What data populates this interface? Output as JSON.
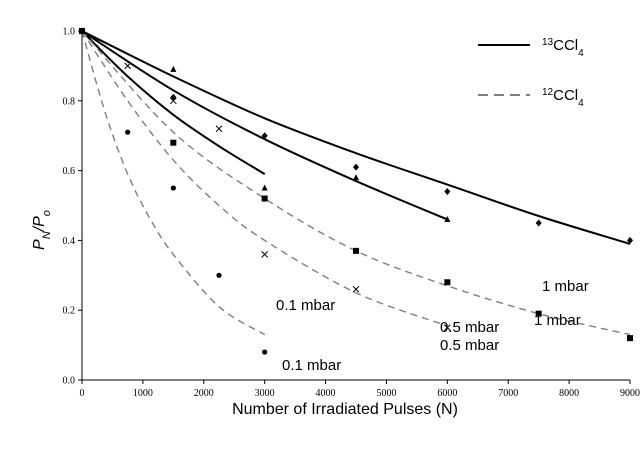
{
  "chart_data": {
    "type": "scatter",
    "xlabel": "Number of Irradiated Pulses (N)",
    "ylabel": {
      "main": "P",
      "sub1": "N",
      "sep": "/P",
      "sub2": "o"
    },
    "xlim": [
      0,
      9000
    ],
    "ylim": [
      0,
      1.0
    ],
    "xticks": [
      0,
      1000,
      2000,
      3000,
      4000,
      5000,
      6000,
      7000,
      8000,
      9000
    ],
    "yticks": [
      0.0,
      0.2,
      0.4,
      0.6,
      0.8,
      1.0
    ],
    "xtick_labels": [
      "0",
      "1000",
      "2000",
      "3000",
      "4000",
      "5000",
      "6000",
      "7000",
      "8000",
      "9000"
    ],
    "ytick_labels": [
      "0.0",
      "0.2",
      "0.4",
      "0.6",
      "0.8",
      "1.0"
    ],
    "grid": false,
    "legend_position": "top-right",
    "legend": [
      {
        "sup": "13",
        "base": "CCl",
        "sub": "4",
        "style": "solid"
      },
      {
        "sup": "12",
        "base": "CCl",
        "sub": "4",
        "style": "dashed"
      }
    ],
    "series": [
      {
        "isotope": "13CCl4",
        "style": "solid",
        "marker": "diamond",
        "annotation": "1 mbar",
        "points": [
          [
            0,
            1.0
          ],
          [
            1500,
            0.81
          ],
          [
            3000,
            0.7
          ],
          [
            4500,
            0.61
          ],
          [
            6000,
            0.54
          ],
          [
            7500,
            0.45
          ],
          [
            9000,
            0.4
          ]
        ],
        "fit": [
          [
            0,
            1.0
          ],
          [
            1500,
            0.87
          ],
          [
            3000,
            0.75
          ],
          [
            4500,
            0.65
          ],
          [
            6000,
            0.56
          ],
          [
            7500,
            0.47
          ],
          [
            9000,
            0.39
          ]
        ]
      },
      {
        "isotope": "13CCl4",
        "style": "solid",
        "marker": "triangle",
        "annotation": "0.5 mbar",
        "points": [
          [
            0,
            1.0
          ],
          [
            1500,
            0.89
          ],
          [
            3000,
            0.55
          ],
          [
            4500,
            0.58
          ],
          [
            6000,
            0.46
          ]
        ],
        "fit": [
          [
            0,
            1.0
          ],
          [
            1500,
            0.83
          ],
          [
            3000,
            0.69
          ],
          [
            4500,
            0.57
          ],
          [
            6000,
            0.46
          ]
        ]
      },
      {
        "isotope": "13CCl4",
        "style": "solid",
        "marker": "none",
        "annotation": "0.1 mbar",
        "points": [],
        "fit": [
          [
            0,
            1.0
          ],
          [
            750,
            0.87
          ],
          [
            1500,
            0.76
          ],
          [
            2250,
            0.67
          ],
          [
            3000,
            0.59
          ]
        ]
      },
      {
        "isotope": "12CCl4",
        "style": "dashed",
        "marker": "square",
        "annotation": "1 mbar",
        "points": [
          [
            0,
            1.0
          ],
          [
            1500,
            0.68
          ],
          [
            3000,
            0.52
          ],
          [
            4500,
            0.37
          ],
          [
            6000,
            0.28
          ],
          [
            7500,
            0.19
          ],
          [
            9000,
            0.12
          ]
        ],
        "fit": [
          [
            0,
            1.0
          ],
          [
            1500,
            0.71
          ],
          [
            3000,
            0.52
          ],
          [
            4500,
            0.37
          ],
          [
            6000,
            0.27
          ],
          [
            7500,
            0.19
          ],
          [
            9000,
            0.13
          ]
        ]
      },
      {
        "isotope": "12CCl4",
        "style": "dashed",
        "marker": "cross",
        "annotation": "0.5 mbar",
        "points": [
          [
            0,
            1.0
          ],
          [
            750,
            0.9
          ],
          [
            1500,
            0.8
          ],
          [
            2250,
            0.72
          ],
          [
            3000,
            0.36
          ],
          [
            4500,
            0.26
          ],
          [
            6000,
            0.15
          ]
        ],
        "fit": [
          [
            0,
            1.0
          ],
          [
            750,
            0.8
          ],
          [
            1500,
            0.63
          ],
          [
            2250,
            0.5
          ],
          [
            3000,
            0.4
          ],
          [
            4500,
            0.25
          ],
          [
            6000,
            0.155
          ]
        ]
      },
      {
        "isotope": "12CCl4",
        "style": "dashed",
        "marker": "circle",
        "annotation": "0.1 mbar",
        "points": [
          [
            0,
            1.0
          ],
          [
            750,
            0.71
          ],
          [
            1500,
            0.55
          ],
          [
            2250,
            0.3
          ],
          [
            3000,
            0.08
          ]
        ],
        "fit": [
          [
            0,
            1.0
          ],
          [
            375,
            0.77
          ],
          [
            750,
            0.59
          ],
          [
            1125,
            0.46
          ],
          [
            1500,
            0.36
          ],
          [
            2250,
            0.21
          ],
          [
            3000,
            0.13
          ]
        ]
      }
    ],
    "colors": {
      "solid": "#000000",
      "dashed": "#7f7f7f",
      "axis": "#000000"
    }
  }
}
